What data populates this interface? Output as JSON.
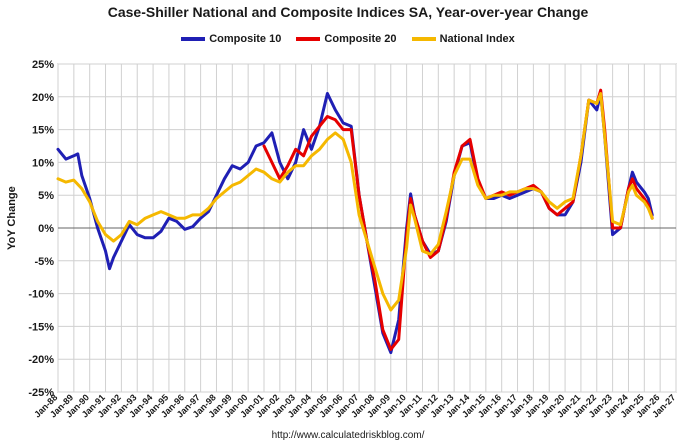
{
  "chart_data": {
    "type": "line",
    "title": "Case-Shiller National and Composite Indices SA, Year-over-year Change",
    "ylabel": "YoY Change",
    "xlabel": "",
    "ylim": [
      -25,
      25
    ],
    "y_ticks": [
      "25%",
      "20%",
      "15%",
      "10%",
      "5%",
      "0%",
      "-5%",
      "-10%",
      "-15%",
      "-20%",
      "-25%"
    ],
    "x_ticks": [
      "Jan-88",
      "Jan-89",
      "Jan-90",
      "Jan-91",
      "Jan-92",
      "Jan-93",
      "Jan-94",
      "Jan-95",
      "Jan-96",
      "Jan-97",
      "Jan-98",
      "Jan-99",
      "Jan-00",
      "Jan-01",
      "Jan-02",
      "Jan-03",
      "Jan-04",
      "Jan-05",
      "Jan-06",
      "Jan-07",
      "Jan-08",
      "Jan-09",
      "Jan-10",
      "Jan-11",
      "Jan-12",
      "Jan-13",
      "Jan-14",
      "Jan-15",
      "Jan-16",
      "Jan-17",
      "Jan-18",
      "Jan-19",
      "Jan-20",
      "Jan-21",
      "Jan-22",
      "Jan-23",
      "Jan-24",
      "Jan-25",
      "Jan-26",
      "Jan-27"
    ],
    "xlim": [
      "Jan-88",
      "Jan-27"
    ],
    "grid": true,
    "legend_position": "top",
    "series": [
      {
        "name": "Composite 10",
        "color": "#1f1fb4",
        "points": [
          [
            "Jan-88",
            12.0
          ],
          [
            "Jul-88",
            10.5
          ],
          [
            "Jan-89",
            11.0
          ],
          [
            "Apr-89",
            11.3
          ],
          [
            "Jul-89",
            8.0
          ],
          [
            "Jan-90",
            4.5
          ],
          [
            "Jul-90",
            0.0
          ],
          [
            "Jan-91",
            -3.5
          ],
          [
            "Apr-91",
            -6.2
          ],
          [
            "Jul-91",
            -4.5
          ],
          [
            "Jan-92",
            -2.0
          ],
          [
            "Jul-92",
            0.5
          ],
          [
            "Jan-93",
            -1.0
          ],
          [
            "Jul-93",
            -1.5
          ],
          [
            "Jan-94",
            -1.5
          ],
          [
            "Jul-94",
            -0.5
          ],
          [
            "Jan-95",
            1.5
          ],
          [
            "Jul-95",
            1.0
          ],
          [
            "Jan-96",
            -0.2
          ],
          [
            "Jul-96",
            0.2
          ],
          [
            "Jan-97",
            1.5
          ],
          [
            "Jul-97",
            2.5
          ],
          [
            "Jan-98",
            5.0
          ],
          [
            "Jul-98",
            7.5
          ],
          [
            "Jan-99",
            9.5
          ],
          [
            "Jul-99",
            9.0
          ],
          [
            "Jan-00",
            10.0
          ],
          [
            "Jul-00",
            12.5
          ],
          [
            "Jan-01",
            13.0
          ],
          [
            "Jul-01",
            14.5
          ],
          [
            "Jan-02",
            10.0
          ],
          [
            "Jul-02",
            7.5
          ],
          [
            "Jan-03",
            10.0
          ],
          [
            "Jul-03",
            15.0
          ],
          [
            "Jan-04",
            12.0
          ],
          [
            "Jul-04",
            15.5
          ],
          [
            "Jan-05",
            20.5
          ],
          [
            "Jul-05",
            18.0
          ],
          [
            "Jan-06",
            16.0
          ],
          [
            "Jul-06",
            15.5
          ],
          [
            "Jan-07",
            5.0
          ],
          [
            "Jul-07",
            -2.0
          ],
          [
            "Jan-08",
            -9.0
          ],
          [
            "Jul-08",
            -16.0
          ],
          [
            "Jan-09",
            -19.0
          ],
          [
            "Jul-09",
            -14.0
          ],
          [
            "Jan-10",
            0.0
          ],
          [
            "Apr-10",
            5.2
          ],
          [
            "Jul-10",
            2.0
          ],
          [
            "Jan-11",
            -2.0
          ],
          [
            "Jul-11",
            -4.0
          ],
          [
            "Jan-12",
            -3.5
          ],
          [
            "Jul-12",
            1.0
          ],
          [
            "Jan-13",
            8.0
          ],
          [
            "Jul-13",
            12.5
          ],
          [
            "Jan-14",
            13.0
          ],
          [
            "Jul-14",
            7.0
          ],
          [
            "Jan-15",
            4.5
          ],
          [
            "Jul-15",
            4.5
          ],
          [
            "Jan-16",
            5.0
          ],
          [
            "Jul-16",
            4.5
          ],
          [
            "Jan-17",
            5.0
          ],
          [
            "Jul-17",
            5.5
          ],
          [
            "Jan-18",
            6.0
          ],
          [
            "Jul-18",
            5.5
          ],
          [
            "Jan-19",
            3.0
          ],
          [
            "Jul-19",
            2.0
          ],
          [
            "Jan-20",
            2.0
          ],
          [
            "Jul-20",
            4.0
          ],
          [
            "Jan-21",
            10.0
          ],
          [
            "Jul-21",
            19.5
          ],
          [
            "Jan-22",
            18.0
          ],
          [
            "Apr-22",
            20.5
          ],
          [
            "Jul-22",
            14.0
          ],
          [
            "Jan-23",
            -1.0
          ],
          [
            "Jul-23",
            0.0
          ],
          [
            "Jan-24",
            6.0
          ],
          [
            "Apr-24",
            8.5
          ],
          [
            "Jul-24",
            7.0
          ],
          [
            "Jan-25",
            5.5
          ],
          [
            "Apr-25",
            4.5
          ],
          [
            "Jul-25",
            2.0
          ]
        ]
      },
      {
        "name": "Composite 20",
        "color": "#e60000",
        "points": [
          [
            "Jan-01",
            12.5
          ],
          [
            "Jul-01",
            10.0
          ],
          [
            "Jan-02",
            7.5
          ],
          [
            "Jul-02",
            9.5
          ],
          [
            "Jan-03",
            12.0
          ],
          [
            "Jul-03",
            11.0
          ],
          [
            "Jan-04",
            14.0
          ],
          [
            "Jul-04",
            15.5
          ],
          [
            "Jan-05",
            17.0
          ],
          [
            "Jul-05",
            16.5
          ],
          [
            "Jan-06",
            15.0
          ],
          [
            "Jul-06",
            15.0
          ],
          [
            "Jan-07",
            5.0
          ],
          [
            "Jul-07",
            -2.0
          ],
          [
            "Jan-08",
            -8.0
          ],
          [
            "Jul-08",
            -15.5
          ],
          [
            "Jan-09",
            -18.5
          ],
          [
            "Jul-09",
            -17.0
          ],
          [
            "Jan-10",
            -1.0
          ],
          [
            "Apr-10",
            4.5
          ],
          [
            "Jul-10",
            2.0
          ],
          [
            "Jan-11",
            -2.0
          ],
          [
            "Jul-11",
            -4.5
          ],
          [
            "Jan-12",
            -3.5
          ],
          [
            "Jul-12",
            1.5
          ],
          [
            "Jan-13",
            8.5
          ],
          [
            "Jul-13",
            12.5
          ],
          [
            "Jan-14",
            13.5
          ],
          [
            "Jul-14",
            7.5
          ],
          [
            "Jan-15",
            4.5
          ],
          [
            "Jul-15",
            5.0
          ],
          [
            "Jan-16",
            5.5
          ],
          [
            "Jul-16",
            5.0
          ],
          [
            "Jan-17",
            5.5
          ],
          [
            "Jul-17",
            6.0
          ],
          [
            "Jan-18",
            6.5
          ],
          [
            "Jul-18",
            5.5
          ],
          [
            "Jan-19",
            3.0
          ],
          [
            "Jul-19",
            2.0
          ],
          [
            "Jan-20",
            3.0
          ],
          [
            "Jul-20",
            4.0
          ],
          [
            "Jan-21",
            11.0
          ],
          [
            "Jul-21",
            19.5
          ],
          [
            "Jan-22",
            19.0
          ],
          [
            "Apr-22",
            21.0
          ],
          [
            "Jul-22",
            15.0
          ],
          [
            "Jan-23",
            0.0
          ],
          [
            "Jul-23",
            0.0
          ],
          [
            "Jan-24",
            6.0
          ],
          [
            "Apr-24",
            7.5
          ],
          [
            "Jul-24",
            6.0
          ],
          [
            "Jan-25",
            4.5
          ],
          [
            "Apr-25",
            3.5
          ],
          [
            "Jul-25",
            1.5
          ]
        ]
      },
      {
        "name": "National Index",
        "color": "#f5b800",
        "points": [
          [
            "Jan-88",
            7.5
          ],
          [
            "Jul-88",
            7.0
          ],
          [
            "Jan-89",
            7.3
          ],
          [
            "Jul-89",
            6.0
          ],
          [
            "Jan-90",
            4.0
          ],
          [
            "Jul-90",
            1.0
          ],
          [
            "Jan-91",
            -1.0
          ],
          [
            "Jul-91",
            -2.0
          ],
          [
            "Jan-92",
            -1.0
          ],
          [
            "Jul-92",
            1.0
          ],
          [
            "Jan-93",
            0.5
          ],
          [
            "Jul-93",
            1.5
          ],
          [
            "Jan-94",
            2.0
          ],
          [
            "Jul-94",
            2.5
          ],
          [
            "Jan-95",
            2.0
          ],
          [
            "Jul-95",
            1.5
          ],
          [
            "Jan-96",
            1.5
          ],
          [
            "Jul-96",
            2.0
          ],
          [
            "Jan-97",
            2.0
          ],
          [
            "Jul-97",
            3.0
          ],
          [
            "Jan-98",
            4.5
          ],
          [
            "Jul-98",
            5.5
          ],
          [
            "Jan-99",
            6.5
          ],
          [
            "Jul-99",
            7.0
          ],
          [
            "Jan-00",
            8.0
          ],
          [
            "Jul-00",
            9.0
          ],
          [
            "Jan-01",
            8.5
          ],
          [
            "Jul-01",
            7.5
          ],
          [
            "Jan-02",
            7.0
          ],
          [
            "Jul-02",
            8.5
          ],
          [
            "Jan-03",
            9.5
          ],
          [
            "Jul-03",
            9.5
          ],
          [
            "Jan-04",
            11.0
          ],
          [
            "Jul-04",
            12.0
          ],
          [
            "Jan-05",
            13.5
          ],
          [
            "Jul-05",
            14.5
          ],
          [
            "Jan-06",
            13.5
          ],
          [
            "Jul-06",
            10.0
          ],
          [
            "Jan-07",
            2.0
          ],
          [
            "Jul-07",
            -2.0
          ],
          [
            "Jan-08",
            -6.0
          ],
          [
            "Jul-08",
            -10.0
          ],
          [
            "Jan-09",
            -12.5
          ],
          [
            "Jul-09",
            -11.0
          ],
          [
            "Jan-10",
            -3.0
          ],
          [
            "Apr-10",
            3.5
          ],
          [
            "Jul-10",
            1.5
          ],
          [
            "Jan-11",
            -3.5
          ],
          [
            "Jul-11",
            -4.0
          ],
          [
            "Jan-12",
            -2.5
          ],
          [
            "Jul-12",
            2.5
          ],
          [
            "Jan-13",
            8.0
          ],
          [
            "Jul-13",
            10.5
          ],
          [
            "Jan-14",
            10.5
          ],
          [
            "Jul-14",
            6.5
          ],
          [
            "Jan-15",
            4.5
          ],
          [
            "Jul-15",
            5.0
          ],
          [
            "Jan-16",
            5.0
          ],
          [
            "Jul-16",
            5.5
          ],
          [
            "Jan-17",
            5.5
          ],
          [
            "Jul-17",
            6.0
          ],
          [
            "Jan-18",
            6.0
          ],
          [
            "Jul-18",
            5.5
          ],
          [
            "Jan-19",
            4.0
          ],
          [
            "Jul-19",
            3.0
          ],
          [
            "Jan-20",
            4.0
          ],
          [
            "Jul-20",
            4.5
          ],
          [
            "Jan-21",
            11.0
          ],
          [
            "Jul-21",
            19.5
          ],
          [
            "Jan-22",
            19.0
          ],
          [
            "Apr-22",
            20.5
          ],
          [
            "Jul-22",
            14.0
          ],
          [
            "Jan-23",
            1.0
          ],
          [
            "Jul-23",
            0.5
          ],
          [
            "Jan-24",
            5.5
          ],
          [
            "Apr-24",
            6.5
          ],
          [
            "Jul-24",
            5.0
          ],
          [
            "Jan-25",
            4.0
          ],
          [
            "Apr-25",
            3.0
          ],
          [
            "Jul-25",
            1.5
          ]
        ]
      }
    ]
  },
  "source": "http://www.calculatedriskblog.com/"
}
